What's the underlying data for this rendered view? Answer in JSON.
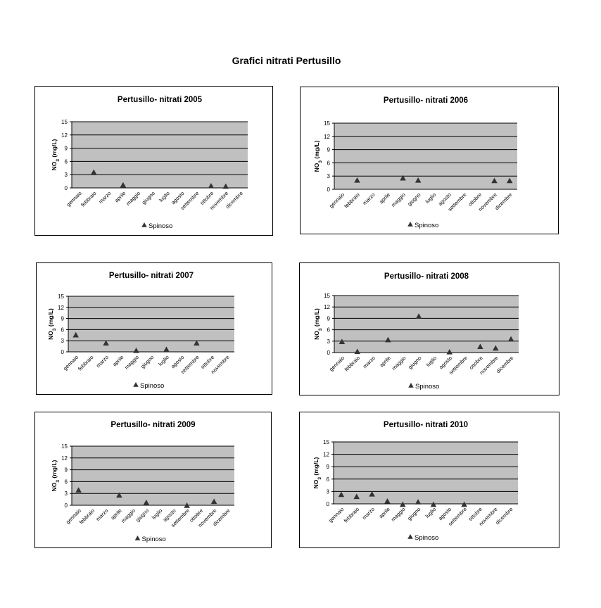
{
  "page": {
    "title": "Grafici nitrati Pertusillo"
  },
  "chart_data": [
    {
      "type": "scatter",
      "title": "Pertusillo- nitrati 2005",
      "ylabel": "NO3 (mg/L)",
      "ylim": [
        0,
        15
      ],
      "yticks": [
        0,
        3,
        6,
        9,
        12,
        15
      ],
      "grid": true,
      "legend": "bottom",
      "categories": [
        "gennaio",
        "febbraio",
        "marzo",
        "aprile",
        "maggio",
        "giugno",
        "luglio",
        "agosto",
        "settembre",
        "ottobre",
        "novembre",
        "dicembre"
      ],
      "series": [
        {
          "name": "Spinoso",
          "points": [
            [
              1.5,
              3.5
            ],
            [
              3.5,
              0.6
            ],
            [
              9.5,
              0.4
            ],
            [
              10.5,
              0.3
            ]
          ]
        }
      ]
    },
    {
      "type": "scatter",
      "title": "Pertusillo- nitrati 2006",
      "ylabel": "NO3 (mg/L)",
      "ylim": [
        0,
        15
      ],
      "yticks": [
        0,
        3,
        6,
        9,
        12,
        15
      ],
      "grid": true,
      "legend": "bottom",
      "categories": [
        "gennaio",
        "febbraio",
        "marzo",
        "aprile",
        "maggio",
        "giugno",
        "luglio",
        "agosto",
        "settembre",
        "ottobre",
        "novembre",
        "dicembre"
      ],
      "series": [
        {
          "name": "Spinoso",
          "points": [
            [
              1.5,
              2.0
            ],
            [
              4.5,
              2.5
            ],
            [
              5.5,
              2.0
            ],
            [
              10.5,
              1.9
            ],
            [
              11.5,
              1.9
            ]
          ]
        }
      ]
    },
    {
      "type": "scatter",
      "title": "Pertusillo- nitrati 2007",
      "ylabel": "NO3 (mg/L)",
      "ylim": [
        0,
        15
      ],
      "yticks": [
        0,
        3,
        6,
        9,
        12,
        15
      ],
      "grid": true,
      "legend": "bottom",
      "categories": [
        "gennaio",
        "febbraio",
        "marzo",
        "aprile",
        "maggio",
        "giugno",
        "luglio",
        "agosto",
        "settembre",
        "ottobre",
        "novembre"
      ],
      "series": [
        {
          "name": "Spinoso",
          "points": [
            [
              0.5,
              4.5
            ],
            [
              2.5,
              2.3
            ],
            [
              4.5,
              0.3
            ],
            [
              6.5,
              0.6
            ],
            [
              8.5,
              2.3
            ]
          ]
        }
      ]
    },
    {
      "type": "scatter",
      "title": "Pertusillo- nitrati 2008",
      "ylabel": "NO3 (mg/L)",
      "ylim": [
        0,
        15
      ],
      "yticks": [
        0,
        3,
        6,
        9,
        12,
        15
      ],
      "grid": true,
      "legend": "bottom",
      "categories": [
        "gennaio",
        "febbraio",
        "marzo",
        "aprile",
        "maggio",
        "giugno",
        "luglio",
        "agosto",
        "settembre",
        "ottobre",
        "novembre",
        "dicembre"
      ],
      "series": [
        {
          "name": "Spinoso",
          "points": [
            [
              0.5,
              2.8
            ],
            [
              1.5,
              0.2
            ],
            [
              3.5,
              3.3
            ],
            [
              5.5,
              9.5
            ],
            [
              7.5,
              0.1
            ],
            [
              9.5,
              1.5
            ],
            [
              10.5,
              1.1
            ],
            [
              11.5,
              3.5
            ]
          ]
        }
      ]
    },
    {
      "type": "scatter",
      "title": "Pertusillo- nitrati 2009",
      "ylabel": "NO3 (mg/L)",
      "ylim": [
        0,
        15
      ],
      "yticks": [
        0,
        3,
        6,
        9,
        12,
        15
      ],
      "grid": true,
      "legend": "bottom",
      "categories": [
        "gennaio",
        "febbraio",
        "marzo",
        "aprile",
        "maggio",
        "giugno",
        "luglio",
        "agosto",
        "settembre",
        "ottobre",
        "novembre",
        "dicembre"
      ],
      "series": [
        {
          "name": "Spinoso",
          "points": [
            [
              0.5,
              3.8
            ],
            [
              3.5,
              2.5
            ],
            [
              5.5,
              0.6
            ],
            [
              8.5,
              -0.1
            ],
            [
              10.5,
              0.9
            ]
          ]
        }
      ]
    },
    {
      "type": "scatter",
      "title": "Pertusillo- nitrati 2010",
      "ylabel": "NO3 (mg/L)",
      "ylim": [
        0,
        15
      ],
      "yticks": [
        0,
        3,
        6,
        9,
        12,
        15
      ],
      "grid": true,
      "legend": "bottom",
      "categories": [
        "gennaio",
        "febbraio",
        "marzo",
        "aprile",
        "maggio",
        "giugno",
        "luglio",
        "agosto",
        "settembre",
        "ottobre",
        "novembre",
        "dicembre"
      ],
      "series": [
        {
          "name": "Spinoso",
          "points": [
            [
              0.5,
              2.2
            ],
            [
              1.5,
              1.7
            ],
            [
              2.5,
              2.3
            ],
            [
              3.5,
              0.6
            ],
            [
              4.5,
              -0.2
            ],
            [
              5.5,
              0.4
            ],
            [
              6.5,
              -0.2
            ],
            [
              8.5,
              -0.2
            ]
          ]
        }
      ]
    }
  ],
  "colors": {
    "plot_bg": "#c0c0c0",
    "marker": "#333333",
    "grid": "#000000"
  }
}
